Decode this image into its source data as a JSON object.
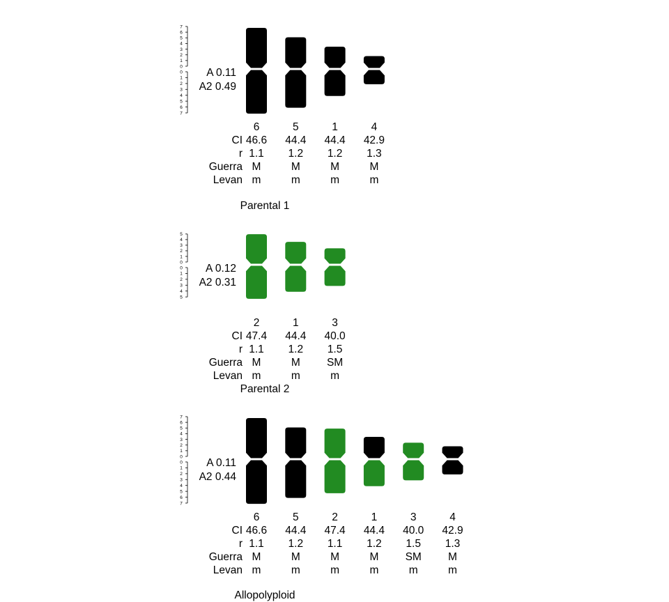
{
  "colors": {
    "parental1": "#000000",
    "parental2": "#228B22"
  },
  "row_labels": {
    "ci": "CI",
    "r": "r",
    "guerra": "Guerra",
    "levan": "Levan"
  },
  "panels": [
    {
      "title": "Parental 1",
      "a_label": "A  0.11",
      "a2_label": "A2 0.49",
      "ruler": {
        "upper_ticks": [
          "7",
          "6",
          "5",
          "4",
          "3",
          "2",
          "1",
          "0"
        ],
        "lower_ticks": [
          "0",
          "1",
          "2",
          "3",
          "4",
          "5",
          "6",
          "7"
        ]
      },
      "chromosomes": [
        {
          "name": "6",
          "ci": "46.6",
          "r": "1.1",
          "guerra": "M",
          "levan": "m",
          "short_arm": 7.0,
          "long_arm": 7.6,
          "color": "#000000"
        },
        {
          "name": "5",
          "ci": "44.4",
          "r": "1.2",
          "guerra": "M",
          "levan": "m",
          "short_arm": 5.4,
          "long_arm": 6.6,
          "color": "#000000"
        },
        {
          "name": "1",
          "ci": "44.4",
          "r": "1.2",
          "guerra": "M",
          "levan": "m",
          "short_arm": 3.8,
          "long_arm": 4.6,
          "color": "#000000"
        },
        {
          "name": "4",
          "ci": "42.9",
          "r": "1.3",
          "guerra": "M",
          "levan": "m",
          "short_arm": 2.2,
          "long_arm": 2.6,
          "color": "#000000"
        }
      ]
    },
    {
      "title": "Parental 2",
      "a_label": "A  0.12",
      "a2_label": "A2 0.31",
      "ruler": {
        "upper_ticks": [
          "5",
          "4",
          "3",
          "2",
          "1",
          "0"
        ],
        "lower_ticks": [
          "0",
          "1",
          "2",
          "3",
          "4",
          "5"
        ]
      },
      "chromosomes": [
        {
          "name": "2",
          "ci": "47.4",
          "r": "1.1",
          "guerra": "M",
          "levan": "m",
          "short_arm": 5.2,
          "long_arm": 5.8,
          "color": "#228B22"
        },
        {
          "name": "1",
          "ci": "44.4",
          "r": "1.2",
          "guerra": "M",
          "levan": "m",
          "short_arm": 3.9,
          "long_arm": 4.6,
          "color": "#228B22"
        },
        {
          "name": "3",
          "ci": "40.0",
          "r": "1.5",
          "guerra": "SM",
          "levan": "m",
          "short_arm": 2.8,
          "long_arm": 3.6,
          "color": "#228B22"
        }
      ]
    },
    {
      "title": "Allopolyploid",
      "a_label": "A  0.11",
      "a2_label": "A2 0.44",
      "ruler": {
        "upper_ticks": [
          "7",
          "6",
          "5",
          "4",
          "3",
          "2",
          "1",
          "0"
        ],
        "lower_ticks": [
          "0",
          "1",
          "2",
          "3",
          "4",
          "5",
          "6",
          "7"
        ]
      },
      "chromosomes": [
        {
          "name": "6",
          "ci": "46.6",
          "r": "1.1",
          "guerra": "M",
          "levan": "m",
          "short_arm": 7.0,
          "long_arm": 7.6,
          "color": "#000000"
        },
        {
          "name": "5",
          "ci": "44.4",
          "r": "1.2",
          "guerra": "M",
          "levan": "m",
          "short_arm": 5.4,
          "long_arm": 6.6,
          "color": "#000000"
        },
        {
          "name": "2",
          "ci": "47.4",
          "r": "1.1",
          "guerra": "M",
          "levan": "m",
          "short_arm": 5.2,
          "long_arm": 5.8,
          "color": "#228B22"
        },
        {
          "name": "1",
          "ci": "44.4",
          "r": "1.2",
          "guerra": "M",
          "levan": "m",
          "short_arm": 3.8,
          "long_arm": 4.6,
          "color": "#000000",
          "long_arm_color": "#228B22"
        },
        {
          "name": "3",
          "ci": "40.0",
          "r": "1.5",
          "guerra": "SM",
          "levan": "m",
          "short_arm": 2.8,
          "long_arm": 3.6,
          "color": "#228B22"
        },
        {
          "name": "4",
          "ci": "42.9",
          "r": "1.3",
          "guerra": "M",
          "levan": "m",
          "short_arm": 2.2,
          "long_arm": 2.6,
          "color": "#000000"
        }
      ]
    }
  ]
}
